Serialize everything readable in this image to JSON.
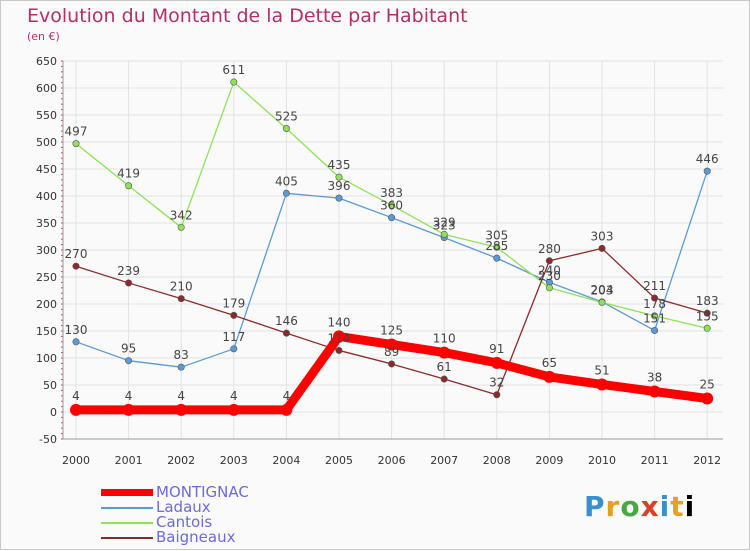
{
  "header": {
    "title": "Evolution du Montant de la Dette par Habitant",
    "unit": "(en €)"
  },
  "logo": {
    "chars": [
      "P",
      "r",
      "o",
      "x",
      "i",
      "t",
      "i"
    ]
  },
  "colors": {
    "title": "#b0306a",
    "axis_text": "#333333",
    "grid": "#e2e2e2",
    "legend_text": "#6b6bd9"
  },
  "chart_data": {
    "type": "line",
    "title": "Evolution du Montant de la Dette par Habitant",
    "ylabel": "(en €)",
    "xlabel": "",
    "ylim": [
      -50,
      650
    ],
    "yticks": [
      -50,
      0,
      50,
      100,
      150,
      200,
      250,
      300,
      350,
      400,
      450,
      500,
      550,
      600,
      650
    ],
    "categories": [
      "2000",
      "2001",
      "2002",
      "2003",
      "2004",
      "2005",
      "2006",
      "2007",
      "2008",
      "2009",
      "2010",
      "2011",
      "2012"
    ],
    "legend_position": "bottom-left",
    "series": [
      {
        "name": "MONTIGNAC",
        "color": "#ff0000",
        "emphasis": true,
        "values": [
          4,
          4,
          4,
          4,
          4,
          140,
          125,
          110,
          91,
          65,
          51,
          38,
          25
        ],
        "labels": [
          "4",
          "4",
          "4",
          "4",
          "4",
          "140",
          "125",
          "110",
          "91",
          "65",
          "51",
          "38",
          "25"
        ]
      },
      {
        "name": "Ladaux",
        "color": "#5b9bd5",
        "emphasis": false,
        "values": [
          130,
          95,
          83,
          117,
          405,
          396,
          360,
          323,
          285,
          240,
          204,
          151,
          446
        ],
        "labels": [
          "130",
          "95",
          "83",
          "117",
          "405",
          "396",
          "360",
          "323",
          "285",
          "240",
          "204",
          "151",
          "446"
        ]
      },
      {
        "name": "Cantois",
        "color": "#8fe15a",
        "emphasis": false,
        "values": [
          497,
          419,
          342,
          611,
          525,
          435,
          383,
          329,
          305,
          230,
          203,
          178,
          155
        ],
        "labels": [
          "497",
          "419",
          "342",
          "611",
          "525",
          "435",
          "383",
          "329",
          "305",
          "230",
          "203",
          "178",
          "155"
        ]
      },
      {
        "name": "Baigneaux",
        "color": "#8b2a2a",
        "emphasis": false,
        "values": [
          270,
          239,
          210,
          179,
          146,
          114,
          89,
          61,
          32,
          280,
          303,
          211,
          183
        ],
        "labels": [
          "270",
          "239",
          "210",
          "179",
          "146",
          "114",
          "89",
          "61",
          "32",
          "280",
          "303",
          "211",
          "183"
        ]
      }
    ]
  }
}
